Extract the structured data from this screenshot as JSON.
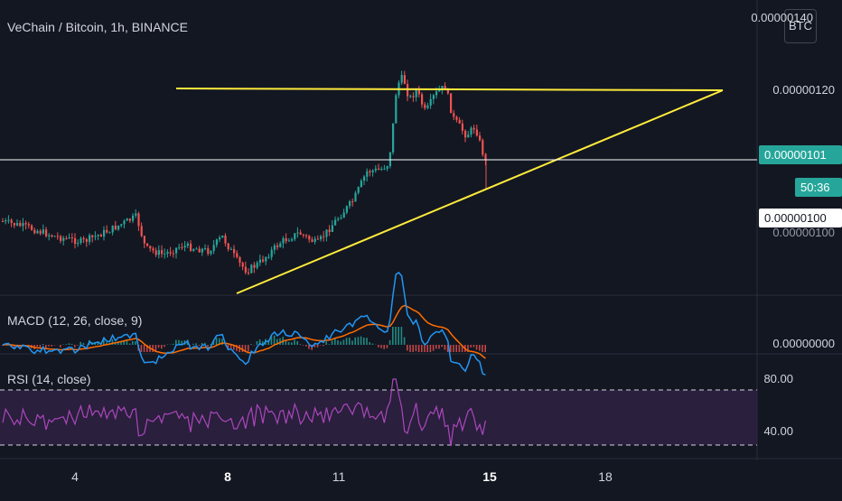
{
  "chart_data": [
    {
      "type": "candlestick",
      "title": "VeChain / Bitcoin, 1h, BINANCE",
      "currency_button": "BTC",
      "y_tick_labels": [
        "0.00000140",
        "0.00000120",
        "0.00000100"
      ],
      "last_price_label": "0.00000101",
      "countdown_label": "50:36",
      "crosshair_label": "0.00000100",
      "x_tick_labels": [
        "4",
        "8",
        "11",
        "15",
        "18"
      ],
      "bold_x_ticks": [
        "8",
        "15"
      ],
      "resistance_line": 1.2e-06,
      "last_price": 1.01e-06,
      "colors": {
        "up": "#26a69a",
        "down": "#ef5350",
        "trendline": "#ffeb3b",
        "background": "#131722"
      }
    },
    {
      "type": "macd",
      "title": "MACD (12, 26, close, 9)",
      "y_tick_labels": [
        "0.00000000"
      ],
      "colors": {
        "macd": "#2196f3",
        "signal": "#ff6d00",
        "hist_up": "#26a69a",
        "hist_down": "#ef5350"
      }
    },
    {
      "type": "rsi",
      "title": "RSI (14, close)",
      "y_tick_labels": [
        "80.00",
        "40.00"
      ],
      "upper_band": 70,
      "lower_band": 30,
      "colors": {
        "line": "#ab47bc",
        "band": "#2a1f3d"
      }
    }
  ]
}
